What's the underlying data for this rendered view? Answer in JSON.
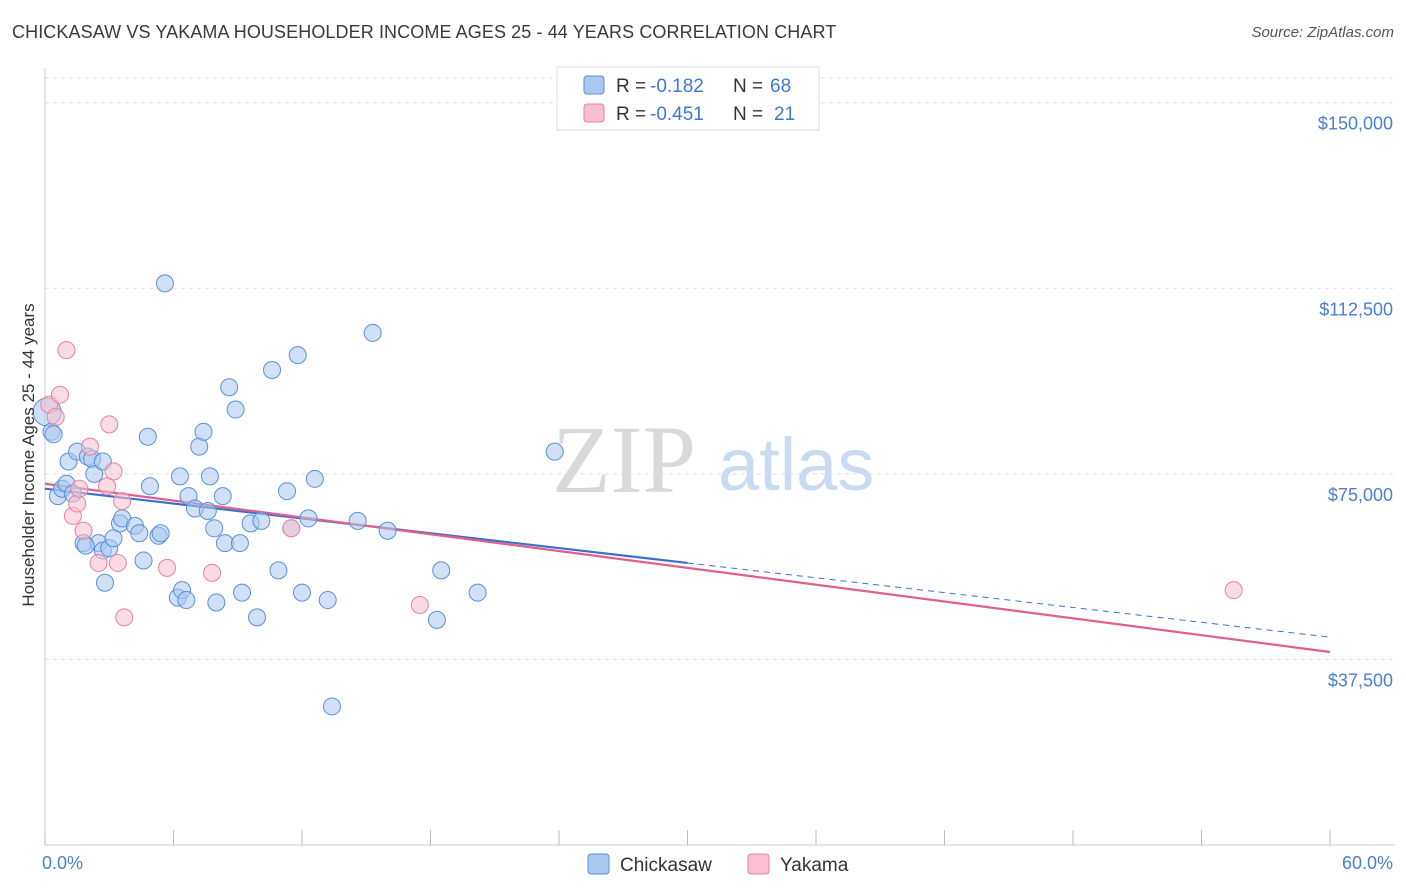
{
  "header": {
    "title": "CHICKASAW VS YAKAMA HOUSEHOLDER INCOME AGES 25 - 44 YEARS CORRELATION CHART",
    "source": "Source: ZipAtlas.com"
  },
  "watermark": {
    "zip": "ZIP",
    "atlas": "atlas"
  },
  "legend": {
    "r_label": "R =",
    "n_label": "N =",
    "rows": [
      {
        "name": "Chickasaw",
        "r": "-0.182",
        "n": "68"
      },
      {
        "name": "Yakama",
        "r": "-0.451",
        "n": "21"
      }
    ]
  },
  "chart_data": {
    "type": "scatter",
    "title": "CHICKASAW VS YAKAMA HOUSEHOLDER INCOME AGES 25 - 44 YEARS CORRELATION CHART",
    "xlabel": "",
    "ylabel": "Householder Income Ages 25 - 44 years",
    "xlim": [
      0,
      60
    ],
    "ylim": [
      0,
      155000
    ],
    "x_tick_labels": [
      "0.0%",
      "60.0%"
    ],
    "y_ticks": [
      {
        "value": 37500,
        "label": "$37,500"
      },
      {
        "value": 75000,
        "label": "$75,000"
      },
      {
        "value": 112500,
        "label": "$112,500"
      },
      {
        "value": 150000,
        "label": "$150,000"
      }
    ],
    "colors": {
      "chickasaw_fill": "#a9c8f0",
      "chickasaw_stroke": "#5b8fd8",
      "chickasaw_line": "#3a6fcf",
      "yakama_fill": "#f7bfd0",
      "yakama_stroke": "#e8819f",
      "yakama_line": "#e0608a",
      "tick_label": "#4a7fcf"
    },
    "series": [
      {
        "name": "Chickasaw",
        "points": [
          [
            0.1,
            87500
          ],
          [
            0.3,
            83500
          ],
          [
            0.4,
            83000
          ],
          [
            0.6,
            70500
          ],
          [
            0.8,
            72000
          ],
          [
            1.0,
            73000
          ],
          [
            1.1,
            77500
          ],
          [
            1.3,
            71000
          ],
          [
            1.5,
            79500
          ],
          [
            1.8,
            61000
          ],
          [
            2.0,
            78500
          ],
          [
            2.2,
            78000
          ],
          [
            2.3,
            75000
          ],
          [
            2.5,
            61000
          ],
          [
            2.7,
            59500
          ],
          [
            2.7,
            77500
          ],
          [
            2.8,
            53000
          ],
          [
            3.0,
            60000
          ],
          [
            3.2,
            62000
          ],
          [
            3.5,
            65000
          ],
          [
            3.6,
            66000
          ],
          [
            4.2,
            64500
          ],
          [
            4.4,
            63000
          ],
          [
            4.6,
            57500
          ],
          [
            4.8,
            82500
          ],
          [
            4.9,
            72500
          ],
          [
            5.3,
            62500
          ],
          [
            5.4,
            63000
          ],
          [
            5.6,
            113500
          ],
          [
            6.2,
            50000
          ],
          [
            6.3,
            74500
          ],
          [
            6.4,
            51500
          ],
          [
            6.6,
            49500
          ],
          [
            6.7,
            70500
          ],
          [
            7.0,
            68000
          ],
          [
            7.2,
            80500
          ],
          [
            7.4,
            83500
          ],
          [
            7.6,
            67500
          ],
          [
            7.7,
            74500
          ],
          [
            7.9,
            64000
          ],
          [
            8.0,
            49000
          ],
          [
            8.3,
            70500
          ],
          [
            8.4,
            61000
          ],
          [
            8.6,
            92500
          ],
          [
            8.9,
            88000
          ],
          [
            9.1,
            61000
          ],
          [
            9.2,
            51000
          ],
          [
            9.6,
            65000
          ],
          [
            9.9,
            46000
          ],
          [
            10.1,
            65500
          ],
          [
            10.6,
            96000
          ],
          [
            10.9,
            55500
          ],
          [
            11.3,
            71500
          ],
          [
            11.5,
            64000
          ],
          [
            11.8,
            99000
          ],
          [
            12.0,
            51000
          ],
          [
            12.3,
            66000
          ],
          [
            12.6,
            74000
          ],
          [
            13.2,
            49500
          ],
          [
            13.4,
            28000
          ],
          [
            14.6,
            65500
          ],
          [
            15.3,
            103500
          ],
          [
            16.0,
            63500
          ],
          [
            18.3,
            45500
          ],
          [
            18.5,
            55500
          ],
          [
            20.2,
            51000
          ],
          [
            23.8,
            79500
          ],
          [
            1.9,
            60500
          ]
        ]
      },
      {
        "name": "Yakama",
        "points": [
          [
            0.2,
            89000
          ],
          [
            0.5,
            86500
          ],
          [
            0.7,
            91000
          ],
          [
            1.0,
            100000
          ],
          [
            1.3,
            66500
          ],
          [
            1.5,
            69000
          ],
          [
            1.6,
            72000
          ],
          [
            1.8,
            63500
          ],
          [
            2.1,
            80500
          ],
          [
            2.5,
            57000
          ],
          [
            2.9,
            72500
          ],
          [
            3.0,
            85000
          ],
          [
            3.2,
            75500
          ],
          [
            3.4,
            57000
          ],
          [
            3.6,
            69500
          ],
          [
            3.7,
            46000
          ],
          [
            5.7,
            56000
          ],
          [
            7.8,
            55000
          ],
          [
            11.5,
            64000
          ],
          [
            17.5,
            48500
          ],
          [
            55.5,
            51500
          ]
        ]
      }
    ],
    "trend_lines": [
      {
        "name": "Chickasaw",
        "solid_x": [
          0,
          30
        ],
        "dashed_x": [
          30,
          60
        ],
        "y_at_0": 72000,
        "y_at_60": 42000
      },
      {
        "name": "Yakama",
        "x": [
          0,
          60
        ],
        "y_at_0": 73000,
        "y_at_60": 39000
      }
    ]
  }
}
